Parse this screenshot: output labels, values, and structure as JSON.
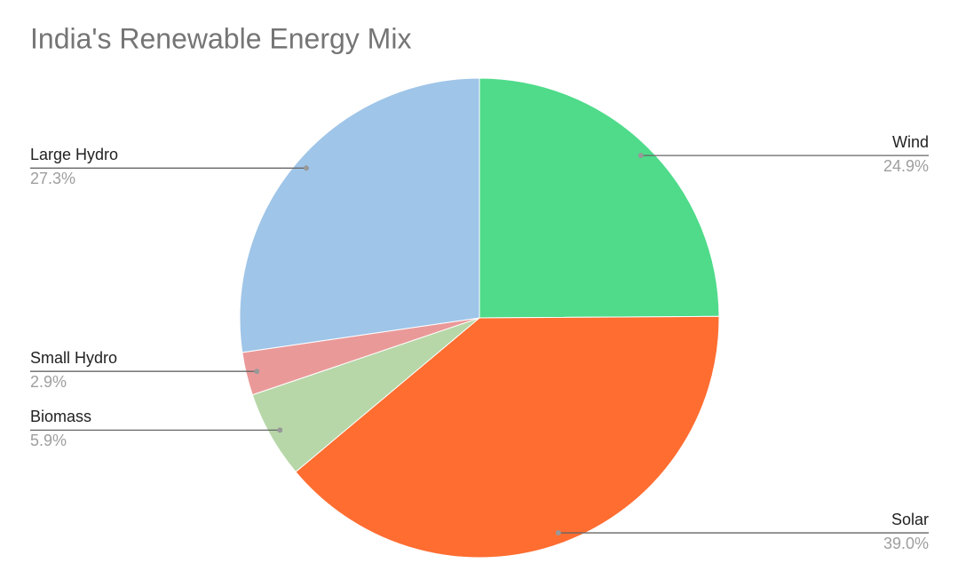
{
  "chart_data": {
    "type": "pie",
    "title": "India's Renewable Energy Mix",
    "categories": [
      "Wind",
      "Solar",
      "Biomass",
      "Small Hydro",
      "Large Hydro"
    ],
    "values": [
      24.9,
      39.0,
      5.9,
      2.9,
      27.3
    ],
    "value_labels": [
      "24.9%",
      "39.0%",
      "5.9%",
      "2.9%",
      "27.3%"
    ],
    "colors": [
      "#4fdb8a",
      "#ff6d31",
      "#b7d7a8",
      "#ea9999",
      "#9fc5e8"
    ]
  }
}
